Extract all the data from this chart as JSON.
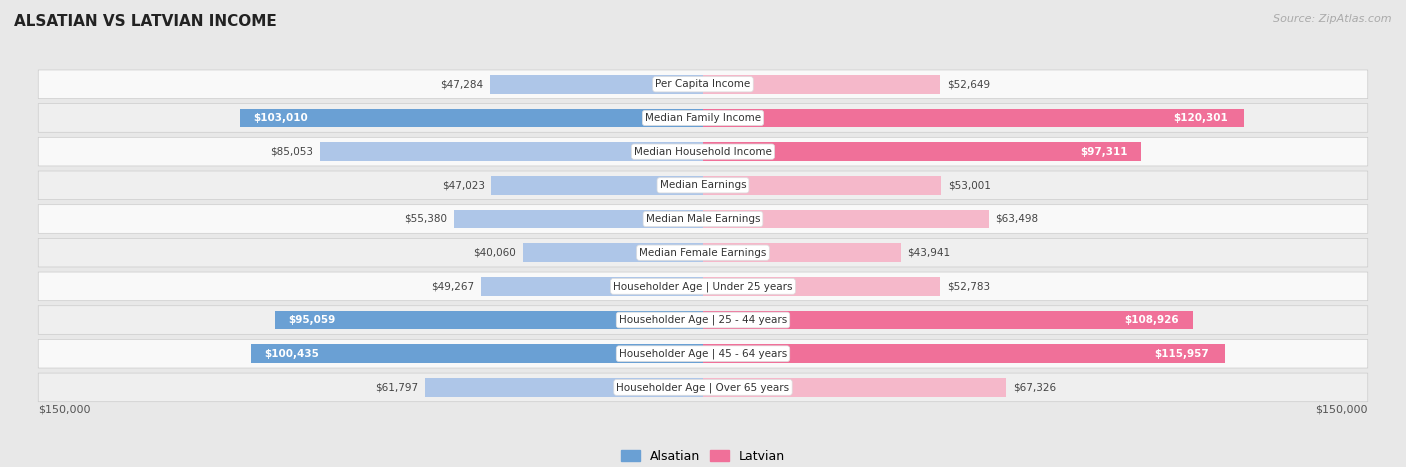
{
  "title": "ALSATIAN VS LATVIAN INCOME",
  "source": "Source: ZipAtlas.com",
  "categories": [
    "Per Capita Income",
    "Median Family Income",
    "Median Household Income",
    "Median Earnings",
    "Median Male Earnings",
    "Median Female Earnings",
    "Householder Age | Under 25 years",
    "Householder Age | 25 - 44 years",
    "Householder Age | 45 - 64 years",
    "Householder Age | Over 65 years"
  ],
  "alsatian": [
    47284,
    103010,
    85053,
    47023,
    55380,
    40060,
    49267,
    95059,
    100435,
    61797
  ],
  "latvian": [
    52649,
    120301,
    97311,
    53001,
    63498,
    43941,
    52783,
    108926,
    115957,
    67326
  ],
  "max_val": 150000,
  "alsatian_color_light": "#aec6e8",
  "alsatian_color_dark": "#6aa0d4",
  "latvian_color_light": "#f5b8ca",
  "latvian_color_dark": "#f07099",
  "row_bg_light": "#f9f9f9",
  "row_bg_dark": "#efefef",
  "fig_bg": "#e8e8e8",
  "title_color": "#222222",
  "source_color": "#aaaaaa",
  "legend_alsatian": "Alsatian",
  "legend_latvian": "Latvian",
  "xlabel_left": "$150,000",
  "xlabel_right": "$150,000",
  "high_threshold": 90000,
  "alsatian_fmt": [
    "$47,284",
    "$103,010",
    "$85,053",
    "$47,023",
    "$55,380",
    "$40,060",
    "$49,267",
    "$95,059",
    "$100,435",
    "$61,797"
  ],
  "latvian_fmt": [
    "$52,649",
    "$120,301",
    "$97,311",
    "$53,001",
    "$63,498",
    "$43,941",
    "$52,783",
    "$108,926",
    "$115,957",
    "$67,326"
  ]
}
